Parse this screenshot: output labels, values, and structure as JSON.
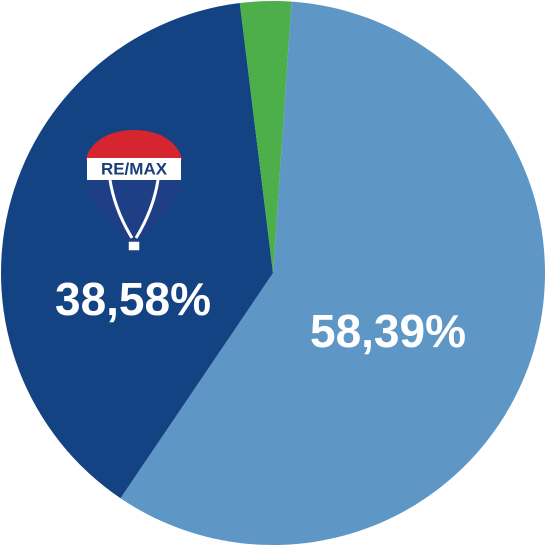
{
  "chart_data": {
    "type": "pie",
    "values": [
      58.39,
      38.58,
      3.03
    ],
    "value_labels": [
      "58,39%",
      "38,58%",
      null
    ],
    "colors": [
      "#5e97c6",
      "#134382",
      "#4caf4a"
    ],
    "logo": "RE/MAX"
  }
}
